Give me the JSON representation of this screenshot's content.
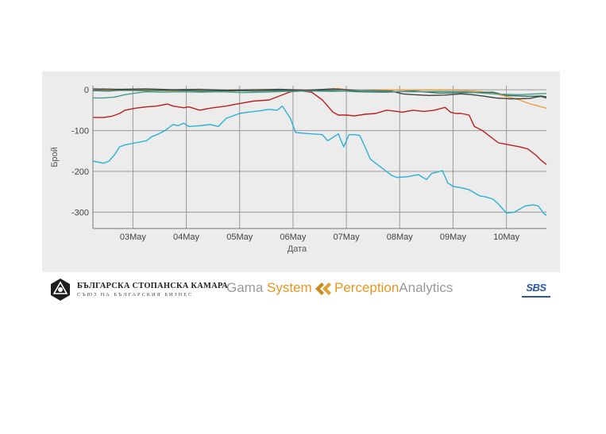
{
  "chart_data": {
    "type": "line",
    "title": "",
    "xlabel": "Дата",
    "ylabel": "Брой",
    "ylim": [
      -340,
      10
    ],
    "yticks": [
      0,
      -100,
      -200,
      -300
    ],
    "xlim": [
      0,
      8.5
    ],
    "x_tick_labels": [
      "03May",
      "04May",
      "05May",
      "06May",
      "07May",
      "08May",
      "09May",
      "10May"
    ],
    "x_tick_positions": [
      0.75,
      1.75,
      2.75,
      3.75,
      4.75,
      5.75,
      6.75,
      7.75
    ],
    "grid": true,
    "series": [
      {
        "color": "#2ab0d6",
        "x": [
          0,
          0.2,
          0.3,
          0.4,
          0.5,
          0.6,
          0.8,
          1.0,
          1.1,
          1.2,
          1.35,
          1.5,
          1.6,
          1.7,
          1.8,
          2.0,
          2.2,
          2.35,
          2.5,
          2.6,
          2.75,
          2.9,
          3.1,
          3.3,
          3.45,
          3.55,
          3.7,
          3.8,
          4.0,
          4.3,
          4.4,
          4.6,
          4.7,
          4.8,
          4.9,
          5.0,
          5.1,
          5.2,
          5.35,
          5.5,
          5.6,
          5.7,
          5.9,
          6.1,
          6.25,
          6.35,
          6.45,
          6.55,
          6.65,
          6.75,
          6.9,
          7.05,
          7.25,
          7.35,
          7.5,
          7.6,
          7.75,
          7.9,
          8.1,
          8.25,
          8.35,
          8.45,
          8.5
        ],
        "y": [
          -175,
          -180,
          -175,
          -160,
          -140,
          -135,
          -130,
          -125,
          -115,
          -110,
          -100,
          -85,
          -88,
          -82,
          -90,
          -88,
          -85,
          -90,
          -70,
          -65,
          -58,
          -55,
          -52,
          -48,
          -50,
          -40,
          -70,
          -105,
          -107,
          -110,
          -125,
          -108,
          -140,
          -110,
          -110,
          -112,
          -140,
          -170,
          -185,
          -200,
          -210,
          -215,
          -213,
          -208,
          -220,
          -205,
          -202,
          -198,
          -228,
          -237,
          -240,
          -245,
          -260,
          -262,
          -268,
          -280,
          -302,
          -300,
          -285,
          -282,
          -285,
          -303,
          -308
        ]
      },
      {
        "color": "#b82020",
        "x": [
          0,
          0.2,
          0.35,
          0.5,
          0.6,
          0.8,
          1.0,
          1.2,
          1.4,
          1.5,
          1.6,
          1.7,
          1.8,
          2.0,
          2.2,
          2.5,
          2.7,
          3.0,
          3.3,
          3.5,
          3.7,
          3.9,
          4.1,
          4.3,
          4.5,
          4.6,
          4.75,
          4.9,
          5.1,
          5.3,
          5.5,
          5.65,
          5.8,
          6.0,
          6.2,
          6.4,
          6.6,
          6.7,
          6.8,
          6.9,
          7.05,
          7.15,
          7.3,
          7.45,
          7.6,
          7.8,
          8.0,
          8.15,
          8.3,
          8.4,
          8.5
        ],
        "y": [
          -68,
          -68,
          -65,
          -58,
          -50,
          -45,
          -42,
          -40,
          -35,
          -40,
          -42,
          -44,
          -42,
          -50,
          -45,
          -40,
          -35,
          -28,
          -25,
          -15,
          -5,
          -3,
          -6,
          -25,
          -55,
          -62,
          -62,
          -64,
          -60,
          -58,
          -50,
          -52,
          -55,
          -50,
          -53,
          -50,
          -43,
          -55,
          -58,
          -58,
          -62,
          -90,
          -100,
          -115,
          -130,
          -135,
          -140,
          -145,
          -160,
          -173,
          -183
        ]
      },
      {
        "color": "#f0a040",
        "x": [
          0,
          0.5,
          1.0,
          1.5,
          2.0,
          2.5,
          3.0,
          3.5,
          4.0,
          4.3,
          4.5,
          4.6,
          4.7,
          4.9,
          5.0,
          5.5,
          6.0,
          6.5,
          7.0,
          7.3,
          7.55,
          7.8,
          8.0,
          8.1,
          8.2,
          8.3,
          8.4,
          8.5
        ],
        "y": [
          -2,
          -1,
          -1,
          -3,
          -2,
          -4,
          -1,
          -2,
          -3,
          0,
          2,
          3,
          1,
          -1,
          -2,
          0,
          -1,
          0,
          -2,
          -5,
          -10,
          -18,
          -25,
          -30,
          -35,
          -38,
          -42,
          -45
        ]
      },
      {
        "color": "#2c6e5a",
        "x": [
          0,
          0.3,
          0.5,
          1.0,
          1.5,
          2.0,
          2.5,
          3.0,
          3.5,
          4.0,
          4.5,
          5.0,
          5.5,
          6.0,
          6.5,
          7.0,
          7.5,
          7.75,
          8.0,
          8.2,
          8.4,
          8.5
        ],
        "y": [
          -2,
          -3,
          -1,
          -2,
          -1,
          -3,
          -2,
          -3,
          -2,
          -1,
          -2,
          -5,
          -6,
          -3,
          -8,
          -7,
          -6,
          -14,
          -15,
          -16,
          -15,
          -17
        ]
      },
      {
        "color": "#404040",
        "x": [
          0,
          0.5,
          1.0,
          1.5,
          2.0,
          2.5,
          3.0,
          3.5,
          4.0,
          4.5,
          5.0,
          5.3,
          5.6,
          5.8,
          6.0,
          6.3,
          6.6,
          6.9,
          7.1,
          7.3,
          7.55,
          7.8,
          8.0,
          8.2,
          8.3,
          8.4,
          8.5
        ],
        "y": [
          2,
          1,
          2,
          0,
          1,
          -1,
          0,
          1,
          -1,
          2,
          -2,
          -2,
          -3,
          -10,
          -12,
          -14,
          -13,
          -10,
          -12,
          -15,
          -20,
          -22,
          -22,
          -21,
          -18,
          -16,
          -20
        ]
      },
      {
        "color": "#4a9a8a",
        "x": [
          0,
          0.2,
          0.4,
          0.6,
          0.8,
          1.0,
          1.3,
          1.6,
          2.0,
          2.4,
          2.8,
          3.2,
          3.6,
          4.0,
          4.5,
          5.0,
          5.5,
          6.0,
          6.5,
          7.0,
          7.3,
          7.5,
          7.7,
          8.0,
          8.3,
          8.5
        ],
        "y": [
          -20,
          -20,
          -18,
          -12,
          -8,
          -5,
          -6,
          -5,
          -6,
          -5,
          -7,
          -6,
          -4,
          -3,
          -4,
          -2,
          -4,
          -5,
          -4,
          -5,
          -8,
          -10,
          -11,
          -12,
          -10,
          -9
        ]
      }
    ]
  },
  "footer": {
    "logos": {
      "bcc_main": "БЪЛГАРСКА СТОПАНСКА КАМАРА",
      "bcc_sub": "СЪЮЗ НА БЪЛГАРСКИЯ БИЗНЕС",
      "gama_part1": "Gama ",
      "gama_part2": "System",
      "perception_part1": "Perception",
      "perception_part2": "Analytics",
      "sbs": "SBS"
    }
  }
}
